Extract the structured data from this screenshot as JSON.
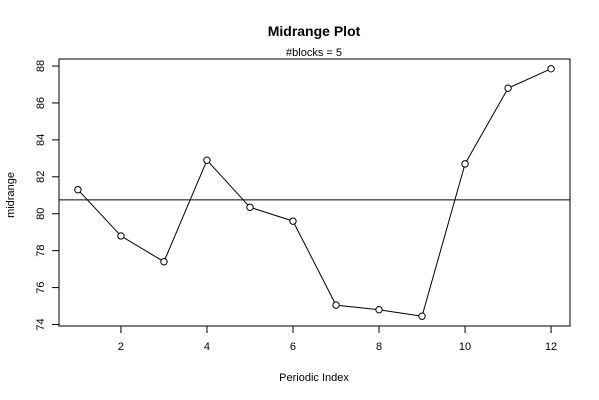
{
  "chart_data": {
    "type": "line",
    "title": "Midrange Plot",
    "subtitle": "#blocks =  5",
    "xlabel": "Periodic Index",
    "ylabel": "midrange",
    "x": [
      1,
      2,
      3,
      4,
      5,
      6,
      7,
      8,
      9,
      10,
      11,
      12
    ],
    "values": [
      81.3,
      78.8,
      77.4,
      82.9,
      80.35,
      79.6,
      75.05,
      74.8,
      74.45,
      82.7,
      86.8,
      87.85
    ],
    "reference_line": 80.75,
    "xlim": [
      0.56,
      12.44
    ],
    "ylim": [
      73.92,
      88.38
    ],
    "x_ticks": [
      2,
      4,
      6,
      8,
      10,
      12
    ],
    "y_ticks": [
      74,
      76,
      78,
      80,
      82,
      84,
      86,
      88
    ],
    "grid": false,
    "marker": "open-circle",
    "line_color": "#000000"
  }
}
